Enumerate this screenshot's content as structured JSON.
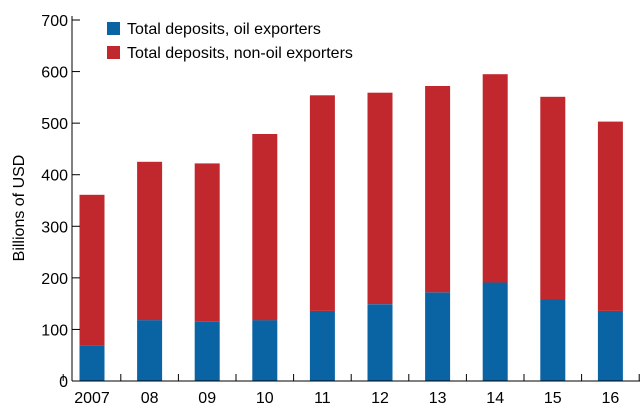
{
  "chart_data": {
    "type": "bar",
    "stacked": true,
    "categories": [
      "2007",
      "08",
      "09",
      "10",
      "11",
      "12",
      "13",
      "14",
      "15",
      "16"
    ],
    "series": [
      {
        "name": "Total deposits, oil exporters",
        "color": "#0a64a4",
        "values": [
          68,
          118,
          115,
          118,
          136,
          149,
          172,
          191,
          158,
          136
        ]
      },
      {
        "name": "Total deposits, non-oil exporters",
        "color": "#c0282d",
        "values": [
          293,
          307,
          307,
          361,
          418,
          410,
          400,
          404,
          393,
          367
        ]
      }
    ],
    "ylabel": "Billions of USD",
    "xlabel": "",
    "ylim": [
      0,
      700
    ],
    "yticks": [
      0,
      100,
      200,
      300,
      400,
      500,
      600,
      700
    ],
    "legend_position": "top-left",
    "grid": false
  }
}
